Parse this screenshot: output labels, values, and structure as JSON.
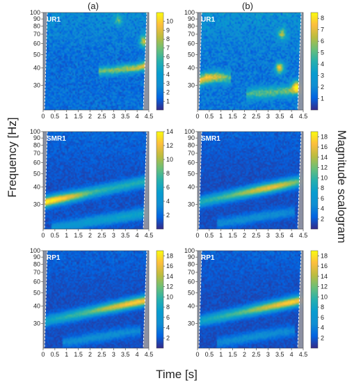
{
  "figure": {
    "column_labels": [
      "(a)",
      "(b)"
    ],
    "ylabel": "Frequency [Hz]",
    "xlabel": "Time [s]",
    "colorbar_label": "Magnitude scalogram",
    "y_tick_labels": [
      "100",
      "90",
      "80",
      "70",
      "60",
      "50",
      "40",
      "30"
    ],
    "x_tick_labels": [
      "0",
      "0.5",
      "1",
      "1.5",
      "2",
      "2.5",
      "3",
      "3.5",
      "4",
      "4.5"
    ]
  },
  "chart_data": [
    {
      "type": "heatmap",
      "label": "UR1",
      "column": "(a)",
      "row": 0,
      "colormap": "parula",
      "x_range": [
        0,
        4.5
      ],
      "y_range": [
        20,
        100
      ],
      "y_scale": "log",
      "color_range": [
        0,
        11
      ],
      "colorbar_ticks": [
        1,
        2,
        3,
        4,
        5,
        6,
        7,
        8,
        9,
        10
      ],
      "ridges": [
        {
          "x": [
            2.5,
            3.0,
            3.5,
            4.0,
            4.4
          ],
          "freq": [
            38,
            38.5,
            39.5,
            40,
            42
          ],
          "magnitude": [
            5,
            5.5,
            6,
            6.5,
            8
          ],
          "width": 0.04
        }
      ],
      "hotspots": [
        {
          "time": 4.3,
          "freq": 62,
          "magnitude": 7
        },
        {
          "time": 3.2,
          "freq": 88,
          "magnitude": 4
        }
      ],
      "noise_level": 2.6
    },
    {
      "type": "heatmap",
      "label": "UR1",
      "column": "(b)",
      "row": 0,
      "colormap": "parula",
      "x_range": [
        0,
        4.5
      ],
      "y_range": [
        20,
        100
      ],
      "y_scale": "log",
      "color_range": [
        0,
        8.5
      ],
      "colorbar_ticks": [
        1,
        2,
        3,
        4,
        5,
        6,
        7,
        8
      ],
      "ridges": [
        {
          "x": [
            0,
            0.4,
            0.9,
            1.3
          ],
          "freq": [
            32,
            34,
            34.5,
            34
          ],
          "magnitude": [
            5.5,
            6,
            5,
            3.5
          ],
          "width": 0.05
        },
        {
          "x": [
            2.2,
            2.8,
            3.4,
            4.0,
            4.3
          ],
          "freq": [
            26,
            26.5,
            27,
            27.5,
            28
          ],
          "magnitude": [
            3,
            3.5,
            3.5,
            4,
            4.5
          ],
          "width": 0.05
        }
      ],
      "hotspots": [
        {
          "time": 3.5,
          "freq": 40,
          "magnitude": 6
        },
        {
          "time": 4.2,
          "freq": 30,
          "magnitude": 4.5
        },
        {
          "time": 3.6,
          "freq": 70,
          "magnitude": 4
        }
      ],
      "noise_level": 2.3
    },
    {
      "type": "heatmap",
      "label": "SMR1",
      "column": "(a)",
      "row": 1,
      "colormap": "parula",
      "x_range": [
        0,
        4.5
      ],
      "y_range": [
        20,
        100
      ],
      "y_scale": "log",
      "color_range": [
        0,
        14
      ],
      "colorbar_ticks": [
        2,
        4,
        6,
        8,
        10,
        12,
        14
      ],
      "ridges": [
        {
          "x": [
            0,
            0.5,
            1.0,
            1.5,
            2.0,
            2.5,
            3.0,
            3.5,
            4.0,
            4.4
          ],
          "freq": [
            31,
            32.3,
            33.6,
            35,
            36.4,
            37.9,
            39.4,
            41,
            42.7,
            44
          ],
          "magnitude": [
            13,
            12.5,
            11,
            9,
            7,
            6,
            5.5,
            5.5,
            5.5,
            5.5
          ],
          "width": 0.045
        },
        {
          "x": [
            0.5,
            1.5,
            2.5,
            3.5,
            4.4
          ],
          "freq": [
            20.5,
            21.8,
            23.2,
            24.6,
            26
          ],
          "magnitude": [
            3,
            3.5,
            4,
            4.5,
            4.5
          ],
          "width": 0.045
        }
      ],
      "hotspots": [],
      "noise_level": 1.8
    },
    {
      "type": "heatmap",
      "label": "SMR1",
      "column": "(b)",
      "row": 1,
      "colormap": "parula",
      "x_range": [
        0,
        4.5
      ],
      "y_range": [
        20,
        100
      ],
      "y_scale": "log",
      "color_range": [
        0,
        19
      ],
      "colorbar_ticks": [
        2,
        4,
        6,
        8,
        10,
        12,
        14,
        16,
        18
      ],
      "ridges": [
        {
          "x": [
            0,
            0.5,
            1.0,
            1.5,
            2.0,
            2.5,
            3.0,
            3.5,
            4.0,
            4.4
          ],
          "freq": [
            31,
            32.3,
            33.6,
            35,
            36.4,
            37.9,
            39.4,
            41,
            42.7,
            44
          ],
          "magnitude": [
            7,
            8,
            9,
            10,
            12,
            13.5,
            14.5,
            14,
            12,
            10
          ],
          "width": 0.045
        },
        {
          "x": [
            1.0,
            2.0,
            3.0,
            4.0
          ],
          "freq": [
            22,
            23.5,
            25,
            26.5
          ],
          "magnitude": [
            3,
            3.5,
            3.5,
            3
          ],
          "width": 0.045
        }
      ],
      "hotspots": [],
      "noise_level": 2.2
    },
    {
      "type": "heatmap",
      "label": "RP1",
      "column": "(a)",
      "row": 2,
      "colormap": "parula",
      "x_range": [
        0,
        4.5
      ],
      "y_range": [
        20,
        100
      ],
      "y_scale": "log",
      "color_range": [
        0,
        19
      ],
      "colorbar_ticks": [
        2,
        4,
        6,
        8,
        10,
        12,
        14,
        16,
        18
      ],
      "ridges": [
        {
          "x": [
            0,
            0.5,
            1.0,
            1.5,
            2.0,
            2.5,
            3.0,
            3.5,
            4.0,
            4.4
          ],
          "freq": [
            31,
            32.3,
            33.6,
            35,
            36.4,
            37.9,
            39.4,
            41,
            42.7,
            44
          ],
          "magnitude": [
            6,
            7,
            8,
            9,
            10,
            12,
            13.5,
            15,
            16,
            15
          ],
          "width": 0.045
        },
        {
          "x": [
            1.0,
            2.0,
            3.0,
            4.0
          ],
          "freq": [
            22,
            23.5,
            25,
            26.5
          ],
          "magnitude": [
            3,
            3.5,
            3.5,
            3
          ],
          "width": 0.045
        }
      ],
      "hotspots": [],
      "noise_level": 2.2
    },
    {
      "type": "heatmap",
      "label": "RP1",
      "column": "(b)",
      "row": 2,
      "colormap": "parula",
      "x_range": [
        0,
        4.5
      ],
      "y_range": [
        20,
        100
      ],
      "y_scale": "log",
      "color_range": [
        0,
        19
      ],
      "colorbar_ticks": [
        2,
        4,
        6,
        8,
        10,
        12,
        14,
        16,
        18
      ],
      "ridges": [
        {
          "x": [
            0,
            0.5,
            1.0,
            1.5,
            2.0,
            2.5,
            3.0,
            3.5,
            4.0,
            4.4
          ],
          "freq": [
            31,
            32.3,
            33.6,
            35,
            36.4,
            37.9,
            39.4,
            41,
            42.7,
            44
          ],
          "magnitude": [
            6,
            7,
            8,
            9,
            10,
            12,
            13.5,
            15,
            16,
            15
          ],
          "width": 0.045
        },
        {
          "x": [
            1.0,
            2.0,
            3.0,
            4.0
          ],
          "freq": [
            22,
            23.5,
            25,
            26.5
          ],
          "magnitude": [
            3,
            3.5,
            3.5,
            3
          ],
          "width": 0.045
        }
      ],
      "hotspots": [],
      "noise_level": 2.2
    }
  ]
}
